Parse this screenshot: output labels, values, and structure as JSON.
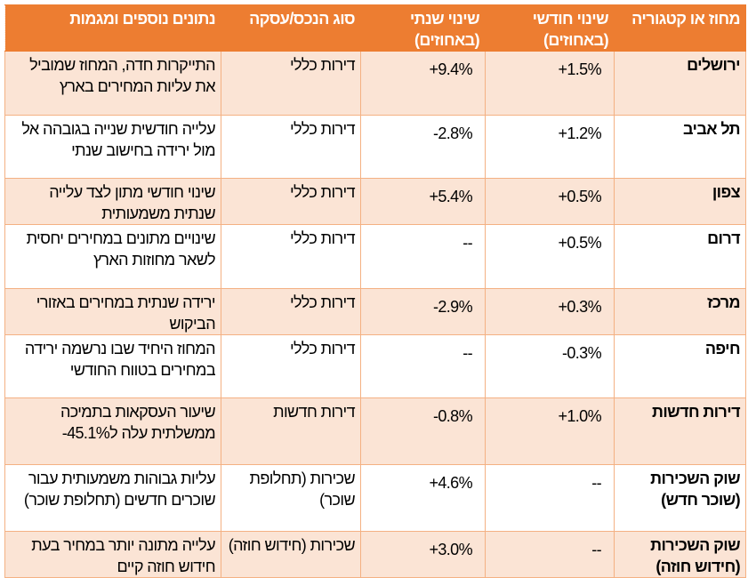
{
  "header": {
    "region": "מחוז או קטגוריה",
    "monthly": "שינוי חודשי (באחוזים)",
    "annual": "שינוי שנתי (באחוזים)",
    "type": "סוג הנכס/עסקה",
    "notes": "נתונים נוספים ומגמות"
  },
  "colors": {
    "header_bg": "#ed7d31",
    "shaded_row": "#fbe4d5",
    "border": "#f4b183"
  },
  "rows": [
    {
      "region": "ירושלים",
      "monthly": "+1.5%",
      "annual": "+9.4%",
      "type": "דירות כללי",
      "notes": "התייקרות חדה, המחוז שמוביל את עליות המחירים בארץ"
    },
    {
      "region": "תל אביב",
      "monthly": "+1.2%",
      "annual": "-2.8%",
      "type": "דירות כללי",
      "notes": "עלייה חודשית שנייה בגובהה אל מול ירידה בחישוב שנתי"
    },
    {
      "region": "צפון",
      "monthly": "+0.5%",
      "annual": "+5.4%",
      "type": "דירות כללי",
      "notes": "שינוי חודשי מתון לצד עלייה שנתית משמעותית"
    },
    {
      "region": "דרום",
      "monthly": "+0.5%",
      "annual": "--",
      "type": "דירות כללי",
      "notes": "שינויים מתונים במחירים יחסית לשאר מחוזות הארץ"
    },
    {
      "region": "מרכז",
      "monthly": "+0.3%",
      "annual": "-2.9%",
      "type": "דירות כללי",
      "notes": "ירידה שנתית במחירים באזורי הביקוש"
    },
    {
      "region": "חיפה",
      "monthly": "-0.3%",
      "annual": "--",
      "type": "דירות כללי",
      "notes": "המחוז היחיד שבו נרשמה ירידה במחירים בטווח החודשי"
    },
    {
      "region": "דירות חדשות",
      "monthly": "+1.0%",
      "annual": "-0.8%",
      "type": "דירות חדשות",
      "notes": "שיעור העסקאות בתמיכה ממשלתית עלה ל⁦-45.1%⁩"
    },
    {
      "region": "שוק השכירות (שוכר חדש)",
      "monthly": "--",
      "annual": "+4.6%",
      "type": "שכירות (תחלופת שוכר)",
      "notes": "עליות גבוהות משמעותית עבור שוכרים חדשים (תחלופת שוכר)"
    },
    {
      "region": "שוק השכירות (חידוש חוזה)",
      "monthly": "--",
      "annual": "+3.0%",
      "type": "שכירות (חידוש חוזה)",
      "notes": "עלייה מתונה יותר במחיר בעת חידוש חוזה קיים"
    }
  ]
}
